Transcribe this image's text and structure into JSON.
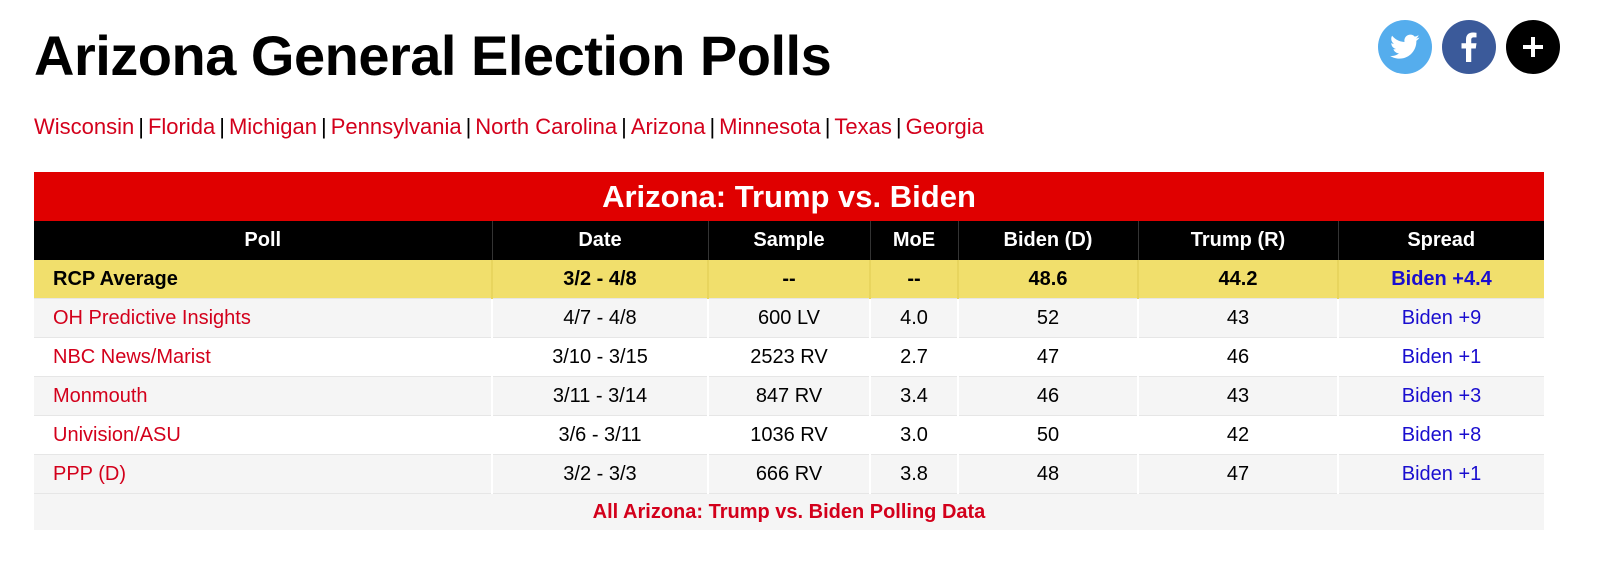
{
  "page": {
    "title": "Arizona General Election Polls"
  },
  "share": {
    "twitter_icon": "twitter-icon",
    "facebook_icon": "facebook-icon",
    "more_icon": "plus-icon",
    "twitter_color": "#55aded",
    "facebook_color": "#3b5a9a",
    "more_color": "#000000"
  },
  "state_nav": [
    "Wisconsin",
    "Florida",
    "Michigan",
    "Pennsylvania",
    "North Carolina",
    "Arizona",
    "Minnesota",
    "Texas",
    "Georgia"
  ],
  "nav_separator": "|",
  "table": {
    "title": "Arizona: Trump vs. Biden",
    "headers": [
      "Poll",
      "Date",
      "Sample",
      "MoE",
      "Biden (D)",
      "Trump (R)",
      "Spread"
    ],
    "average": {
      "poll": "RCP Average",
      "date": "3/2 - 4/8",
      "sample": "--",
      "moe": "--",
      "biden": "48.6",
      "trump": "44.2",
      "spread": "Biden +4.4"
    },
    "rows": [
      {
        "poll": "OH Predictive Insights",
        "date": "4/7 - 4/8",
        "sample": "600 LV",
        "moe": "4.0",
        "biden": "52",
        "trump": "43",
        "spread": "Biden +9"
      },
      {
        "poll": "NBC News/Marist",
        "date": "3/10 - 3/15",
        "sample": "2523 RV",
        "moe": "2.7",
        "biden": "47",
        "trump": "46",
        "spread": "Biden +1"
      },
      {
        "poll": "Monmouth",
        "date": "3/11 - 3/14",
        "sample": "847 RV",
        "moe": "3.4",
        "biden": "46",
        "trump": "43",
        "spread": "Biden +3"
      },
      {
        "poll": "Univision/ASU",
        "date": "3/6 - 3/11",
        "sample": "1036 RV",
        "moe": "3.0",
        "biden": "50",
        "trump": "42",
        "spread": "Biden +8"
      },
      {
        "poll": "PPP (D)",
        "date": "3/2 - 3/3",
        "sample": "666 RV",
        "moe": "3.8",
        "biden": "48",
        "trump": "47",
        "spread": "Biden +1"
      }
    ],
    "footer_link": "All Arizona: Trump vs. Biden Polling Data"
  },
  "colors": {
    "brand_red": "#d3001b",
    "title_bar_red": "#e00000",
    "average_row_yellow": "#f1df6c",
    "spread_blue": "#1a0ecf"
  }
}
